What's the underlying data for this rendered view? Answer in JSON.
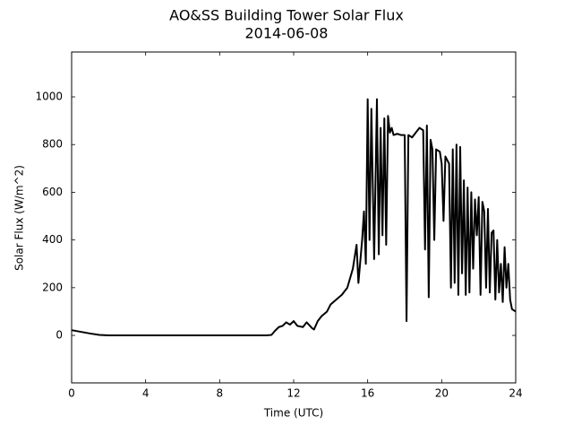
{
  "chart_data": {
    "type": "line",
    "title": "AO&SS Building Tower Solar Flux",
    "subtitle": "2014-06-08",
    "x_label": "Time (UTC)",
    "y_label": "Solar Flux (W/m^2)",
    "color": "#000000",
    "x": [
      0,
      0.5,
      1,
      1.5,
      2,
      4,
      6,
      8,
      10,
      10.5,
      10.8,
      11,
      11.2,
      11.4,
      11.6,
      11.8,
      12,
      12.2,
      12.5,
      12.7,
      13,
      13.1,
      13.3,
      13.5,
      13.8,
      14,
      14.3,
      14.6,
      14.9,
      15.2,
      15.4,
      15.5,
      15.7,
      15.8,
      15.9,
      16.0,
      16.1,
      16.2,
      16.35,
      16.5,
      16.6,
      16.7,
      16.8,
      16.9,
      17.0,
      17.1,
      17.2,
      17.3,
      17.4,
      17.6,
      17.8,
      18.0,
      18.1,
      18.2,
      18.4,
      18.6,
      18.8,
      19.0,
      19.1,
      19.2,
      19.3,
      19.4,
      19.5,
      19.6,
      19.7,
      19.9,
      20.0,
      20.1,
      20.2,
      20.4,
      20.5,
      20.6,
      20.7,
      20.8,
      20.9,
      21.0,
      21.1,
      21.2,
      21.3,
      21.4,
      21.5,
      21.6,
      21.7,
      21.8,
      21.9,
      22.0,
      22.1,
      22.2,
      22.3,
      22.4,
      22.5,
      22.6,
      22.7,
      22.8,
      22.9,
      23.0,
      23.1,
      23.2,
      23.3,
      23.4,
      23.5,
      23.6,
      23.7,
      23.8,
      24
    ],
    "values": [
      22,
      15,
      8,
      2,
      0,
      0,
      0,
      0,
      0,
      0,
      2,
      20,
      35,
      40,
      55,
      45,
      60,
      40,
      35,
      55,
      30,
      25,
      60,
      80,
      100,
      130,
      150,
      170,
      200,
      280,
      380,
      220,
      400,
      520,
      300,
      990,
      400,
      950,
      320,
      990,
      340,
      870,
      420,
      910,
      380,
      920,
      850,
      870,
      840,
      845,
      840,
      840,
      60,
      840,
      830,
      850,
      870,
      860,
      360,
      880,
      160,
      820,
      780,
      400,
      780,
      770,
      720,
      480,
      750,
      720,
      200,
      780,
      220,
      800,
      170,
      790,
      260,
      650,
      170,
      620,
      180,
      600,
      280,
      570,
      420,
      580,
      170,
      560,
      520,
      200,
      530,
      180,
      430,
      440,
      150,
      400,
      180,
      300,
      140,
      370,
      200,
      300,
      150,
      110,
      100
    ],
    "xlim": [
      0,
      24
    ],
    "xticks": [
      0,
      4,
      8,
      12,
      16,
      20,
      24
    ],
    "ylim": [
      -199,
      1188
    ],
    "yticks": [
      0,
      200,
      400,
      600,
      800,
      1000
    ]
  }
}
